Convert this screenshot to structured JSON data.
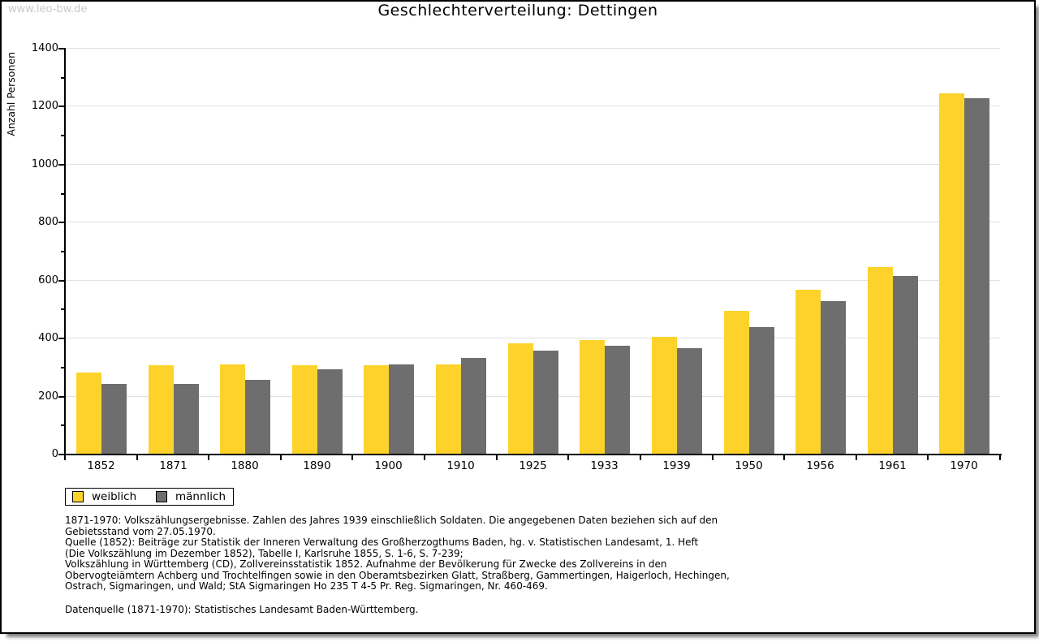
{
  "watermark": "www.leo-bw.de",
  "title": "Geschlechterverteilung: Dettingen",
  "chart_data": {
    "type": "bar",
    "title": "Geschlechterverteilung: Dettingen",
    "xlabel": "",
    "ylabel": "Anzahl Personen",
    "ylim": [
      0,
      1400
    ],
    "ytick_step": 200,
    "yminor_step": 100,
    "grid": true,
    "legend_position": "bottom-left",
    "categories": [
      "1852",
      "1871",
      "1880",
      "1890",
      "1900",
      "1910",
      "1925",
      "1933",
      "1939",
      "1950",
      "1956",
      "1961",
      "1970"
    ],
    "series": [
      {
        "name": "weiblich",
        "color": "#FDD32B",
        "values": [
          280,
          305,
          308,
          305,
          305,
          308,
          380,
          393,
          404,
          492,
          566,
          645,
          1242
        ]
      },
      {
        "name": "männlich",
        "color": "#6E6E6E",
        "values": [
          242,
          240,
          254,
          291,
          308,
          331,
          355,
          373,
          365,
          437,
          525,
          614,
          1225
        ]
      }
    ]
  },
  "legend": {
    "items": [
      {
        "label": "weiblich",
        "color": "#FDD32B"
      },
      {
        "label": "männlich",
        "color": "#6E6E6E"
      }
    ]
  },
  "footnotes": {
    "lines": [
      "1871-1970: Volkszählungsergebnisse. Zahlen des Jahres 1939 einschließlich Soldaten. Die angegebenen Daten beziehen sich auf den",
      "Gebietsstand vom 27.05.1970.",
      "Quelle (1852): Beiträge zur Statistik der Inneren Verwaltung des Großherzogthums Baden, hg. v. Statistischen Landesamt, 1. Heft",
      "(Die Volkszählung im Dezember 1852), Tabelle I, Karlsruhe 1855, S. 1-6, S. 7-239;",
      "Volkszählung in Württemberg (CD), Zollvereinsstatistik 1852. Aufnahme der Bevölkerung für Zwecke des Zollvereins in den",
      "Obervogteiämtern Achberg und Trochtelfingen sowie in den Oberamtsbezirken Glatt, Straßberg, Gammertingen, Haigerloch, Hechingen,",
      "Ostrach, Sigmaringen, und Wald; StA Sigmaringen Ho 235 T 4-5 Pr. Reg. Sigmaringen, Nr. 460-469."
    ],
    "datasource": "Datenquelle (1871-1970): Statistisches Landesamt Baden-Württemberg."
  },
  "colors": {
    "gridline": "#e1e1e1",
    "axis": "#000000",
    "watermark": "#c9c9c9",
    "frame_border": "#000000"
  }
}
